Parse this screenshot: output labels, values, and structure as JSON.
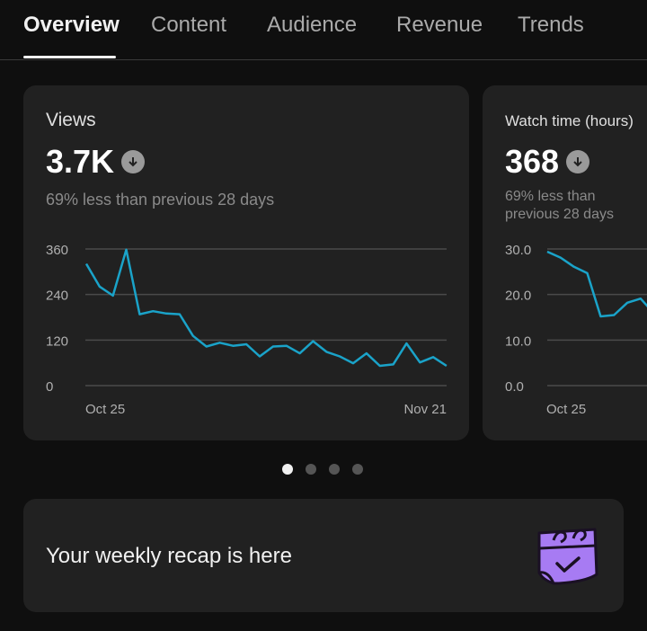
{
  "tabs": [
    {
      "label": "Overview",
      "active": true
    },
    {
      "label": "Content"
    },
    {
      "label": "Audience"
    },
    {
      "label": "Revenue"
    },
    {
      "label": "Trends"
    }
  ],
  "cards": [
    {
      "title": "Views",
      "value": "3.7K",
      "trend_icon": "arrow-down-circle-icon",
      "comparison": "69% less than previous 28 days"
    },
    {
      "title": "Watch time (hours)",
      "value": "368",
      "trend_icon": "arrow-down-circle-icon",
      "comparison": "69% less than previous 28 days"
    }
  ],
  "carousel": {
    "count": 4,
    "active": 0
  },
  "recap": {
    "text": "Your weekly recap is here",
    "icon": "calendar-check-icon",
    "icon_color": "#a77bf3"
  },
  "colors": {
    "line": "#1aa3c9",
    "background": "#0f0f0f",
    "card": "#212121"
  },
  "chart_data": [
    {
      "type": "line",
      "title": "Views",
      "yticks": [
        "0",
        "120",
        "240",
        "360"
      ],
      "ylim": [
        0,
        360
      ],
      "xtick_labels": [
        "Oct 25",
        "Nov 21"
      ],
      "grid": true,
      "values": [
        321,
        261,
        237,
        358,
        188,
        196,
        190,
        188,
        131,
        103,
        113,
        105,
        109,
        77,
        103,
        105,
        85,
        117,
        89,
        77,
        59,
        85,
        52,
        56,
        111,
        61,
        75,
        52
      ]
    },
    {
      "type": "line",
      "title": "Watch time (hours)",
      "yticks": [
        "0.0",
        "10.0",
        "20.0",
        "30.0"
      ],
      "ylim": [
        0,
        30
      ],
      "xtick_labels": [
        "Oct 25"
      ],
      "grid": true,
      "values": [
        29.4,
        28.1,
        26.1,
        24.7,
        15.2,
        15.5,
        18.2,
        19.1,
        15.8
      ]
    }
  ]
}
